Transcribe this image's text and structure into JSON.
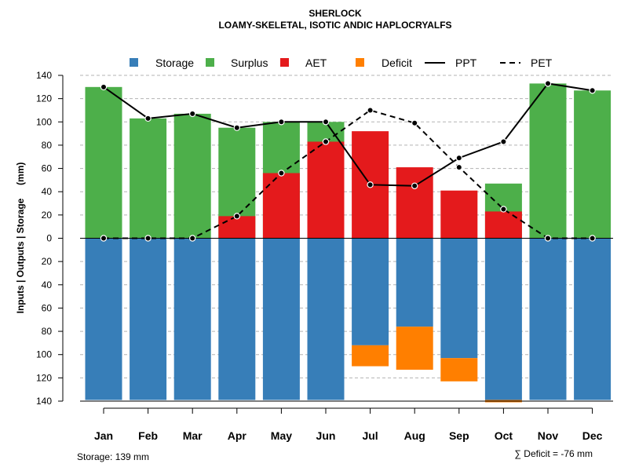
{
  "chart_data": {
    "type": "bar",
    "title": "SHERLOCK",
    "subtitle": "LOAMY-SKELETAL, ISOTIC ANDIC HAPLOCRYALFS",
    "ylabel": "Inputs | Outputs | Storage     (mm)",
    "ylim": [
      -140,
      140
    ],
    "yticks": [
      140,
      120,
      100,
      80,
      60,
      40,
      20,
      0,
      -20,
      -40,
      -60,
      -80,
      -100,
      -120,
      -140
    ],
    "ytick_labels": [
      "140",
      "120",
      "100",
      "80",
      "60",
      "40",
      "20",
      "0",
      "20",
      "40",
      "60",
      "80",
      "100",
      "120",
      "140"
    ],
    "categories": [
      "Jan",
      "Feb",
      "Mar",
      "Apr",
      "May",
      "Jun",
      "Jul",
      "Aug",
      "Sep",
      "Oct",
      "Nov",
      "Dec"
    ],
    "legend": {
      "position": "top",
      "items": [
        {
          "label": "Storage",
          "kind": "square",
          "color": "#377EB8"
        },
        {
          "label": "Surplus",
          "kind": "square",
          "color": "#4DAF4A"
        },
        {
          "label": "AET",
          "kind": "square",
          "color": "#E41A1C"
        },
        {
          "label": "Deficit",
          "kind": "square",
          "color": "#FF7F00"
        },
        {
          "label": "PPT",
          "kind": "solid-line",
          "color": "#000000"
        },
        {
          "label": "PET",
          "kind": "dashed-line",
          "color": "#000000"
        }
      ]
    },
    "series": [
      {
        "name": "Surplus",
        "color": "#4DAF4A",
        "values": [
          130,
          103,
          107,
          95,
          100,
          100,
          0,
          0,
          0,
          47,
          133,
          127
        ]
      },
      {
        "name": "AET",
        "color": "#E41A1C",
        "values": [
          0,
          0,
          0,
          19,
          56,
          83,
          92,
          61,
          41,
          23,
          0,
          0
        ]
      },
      {
        "name": "Storage",
        "color": "#377EB8",
        "values": [
          139,
          139,
          139,
          139,
          139,
          139,
          92,
          76,
          103,
          139,
          139,
          139
        ]
      },
      {
        "name": "Deficit",
        "color": "#FF7F00",
        "values": [
          0,
          0,
          0,
          0,
          0,
          0,
          18,
          37,
          20,
          2,
          0,
          0
        ]
      },
      {
        "name": "PPT",
        "color": "#000000",
        "values": [
          130,
          103,
          107,
          95,
          100,
          100,
          46,
          45,
          69,
          83,
          133,
          127
        ]
      },
      {
        "name": "PET",
        "color": "#000000",
        "values": [
          0,
          0,
          0,
          19,
          56,
          83,
          110,
          99,
          61,
          25,
          0,
          0
        ]
      }
    ],
    "footer_left": "Storage: 139 mm",
    "footer_right": "∑ Deficit = -76 mm"
  }
}
